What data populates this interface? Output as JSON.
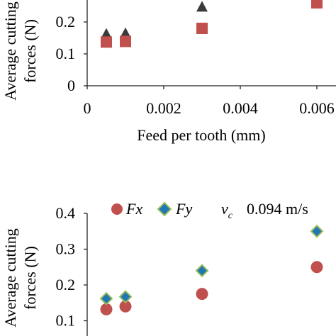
{
  "chart_data": [
    {
      "type": "scatter",
      "ylabel_lines": [
        "Average cutting",
        "forces (N)"
      ],
      "xlabel": "Feed per tooth (mm)",
      "xlim": [
        0,
        0.006
      ],
      "ylim": [
        0,
        0.3
      ],
      "x_ticks": [
        "0",
        "0.002",
        "0.004",
        "0.006"
      ],
      "y_ticks": [
        "0",
        "0.1",
        "0.2"
      ],
      "colors": {
        "triangle": "#3a3a3a",
        "square": "#c0504d",
        "axis": "#222222"
      },
      "series": [
        {
          "marker": "triangle",
          "x": [
            0.0005,
            0.001,
            0.003
          ],
          "y": [
            0.163,
            0.165,
            0.248
          ]
        },
        {
          "marker": "square",
          "x": [
            0.0005,
            0.001,
            0.003,
            0.006
          ],
          "y": [
            0.137,
            0.139,
            0.18,
            0.26
          ]
        }
      ]
    },
    {
      "type": "scatter",
      "ylabel_lines": [
        "Average cutting",
        "forces (N)"
      ],
      "xlim": [
        0,
        0.006
      ],
      "ylim": [
        0,
        0.4
      ],
      "y_ticks": [
        "0.1",
        "0.2",
        "0.3",
        "0.4"
      ],
      "legend": {
        "fx": "Fx",
        "fy": "Fy",
        "vc_symbol": "v",
        "vc_sub": "c",
        "vc_value": "0.094 m/s"
      },
      "colors": {
        "circle": "#c0504d",
        "diamond_fill": "#1f77b4",
        "diamond_stroke": "#9bbb59",
        "axis": "#222222"
      },
      "series": [
        {
          "name": "Fx",
          "marker": "circle",
          "x": [
            0.0005,
            0.001,
            0.003,
            0.006
          ],
          "y": [
            0.132,
            0.14,
            0.175,
            0.25
          ]
        },
        {
          "name": "Fy",
          "marker": "diamond",
          "x": [
            0.0005,
            0.001,
            0.003,
            0.006
          ],
          "y": [
            0.162,
            0.167,
            0.24,
            0.35
          ]
        }
      ]
    }
  ]
}
